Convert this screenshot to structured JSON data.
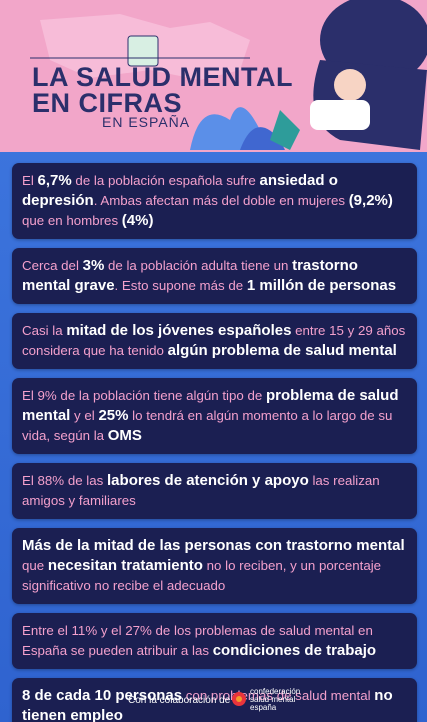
{
  "header": {
    "title_lines": [
      "LA SALUD MENTAL",
      "EN CIFRAS"
    ],
    "subtitle": "EN ESPAÑA"
  },
  "cards": [
    {
      "runs": [
        {
          "text": "El ",
          "strong": false
        },
        {
          "text": "6,7%",
          "strong": true
        },
        {
          "text": " de la población española sufre ",
          "strong": false
        },
        {
          "text": "ansiedad o depresión",
          "strong": true
        },
        {
          "text": ". Ambas afectan más del doble en mujeres ",
          "strong": false
        },
        {
          "text": "(9,2%)",
          "strong": true
        },
        {
          "text": " que en hombres ",
          "strong": false
        },
        {
          "text": "(4%)",
          "strong": true
        }
      ]
    },
    {
      "runs": [
        {
          "text": "Cerca del ",
          "strong": false
        },
        {
          "text": "3%",
          "strong": true
        },
        {
          "text": "  de la población adulta tiene un ",
          "strong": false
        },
        {
          "text": "trastorno mental grave",
          "strong": true
        },
        {
          "text": ". Esto supone más de ",
          "strong": false
        },
        {
          "text": "1 millón de personas",
          "strong": true
        }
      ]
    },
    {
      "runs": [
        {
          "text": "Casi la ",
          "strong": false
        },
        {
          "text": "mitad de los jóvenes españoles",
          "strong": true
        },
        {
          "text": " entre 15 y 29 años considera que ha tenido ",
          "strong": false
        },
        {
          "text": "algún problema de salud mental",
          "strong": true
        }
      ]
    },
    {
      "runs": [
        {
          "text": "El 9% de la población tiene algún tipo de ",
          "strong": false
        },
        {
          "text": "problema de salud mental",
          "strong": true
        },
        {
          "text": " y el ",
          "strong": false
        },
        {
          "text": "25%",
          "strong": true
        },
        {
          "text": " lo tendrá en algún momento a lo largo de su vida, según la ",
          "strong": false
        },
        {
          "text": "OMS",
          "strong": true
        }
      ]
    },
    {
      "runs": [
        {
          "text": "El 88% de las ",
          "strong": false
        },
        {
          "text": "labores de atención y apoyo",
          "strong": true
        },
        {
          "text": " las realizan amigos y familiares",
          "strong": false
        }
      ]
    },
    {
      "runs": [
        {
          "text": "Más de la mitad de las personas con trastorno mental",
          "strong": true
        },
        {
          "text": " que ",
          "strong": false
        },
        {
          "text": "necesitan tratamiento",
          "strong": true
        },
        {
          "text": " no lo reciben, y un porcentaje significativo no recibe el adecuado",
          "strong": false
        }
      ]
    },
    {
      "runs": [
        {
          "text": "Entre el 11% y el 27% de los problemas de salud mental en España se pueden atribuir a las ",
          "strong": false
        },
        {
          "text": "condiciones de trabajo",
          "strong": true
        }
      ]
    },
    {
      "runs": [
        {
          "text": "8 de cada 10 personas",
          "strong": true
        },
        {
          "text": " con problemas de salud mental ",
          "strong": false
        },
        {
          "text": "no tienen empleo",
          "strong": true
        }
      ]
    }
  ],
  "footer": {
    "credit": "Con la colaboración de",
    "logo_lines": [
      "confederación",
      "salud mental",
      "españa"
    ]
  }
}
